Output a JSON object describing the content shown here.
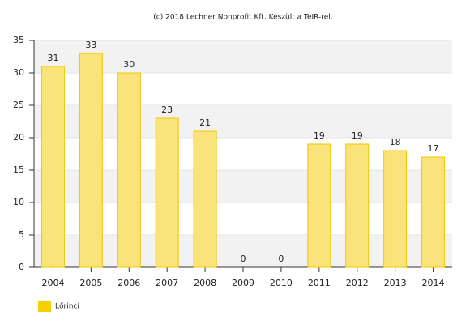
{
  "chart_data": {
    "type": "bar",
    "title": "(c) 2018 Lechner Nonprofit Kft. Készült a TeIR-rel.",
    "categories": [
      "2004",
      "2005",
      "2006",
      "2007",
      "2008",
      "2009",
      "2010",
      "2011",
      "2012",
      "2013",
      "2014"
    ],
    "series": [
      {
        "name": "Lőrinci",
        "color": "#f9e37a",
        "values": [
          31,
          33,
          30,
          23,
          21,
          0,
          0,
          19,
          19,
          18,
          17
        ]
      }
    ],
    "ylim": [
      0,
      35
    ],
    "yticks": [
      0,
      5,
      10,
      15,
      20,
      25,
      30,
      35
    ],
    "grid": true,
    "legend": "bottom-left"
  }
}
